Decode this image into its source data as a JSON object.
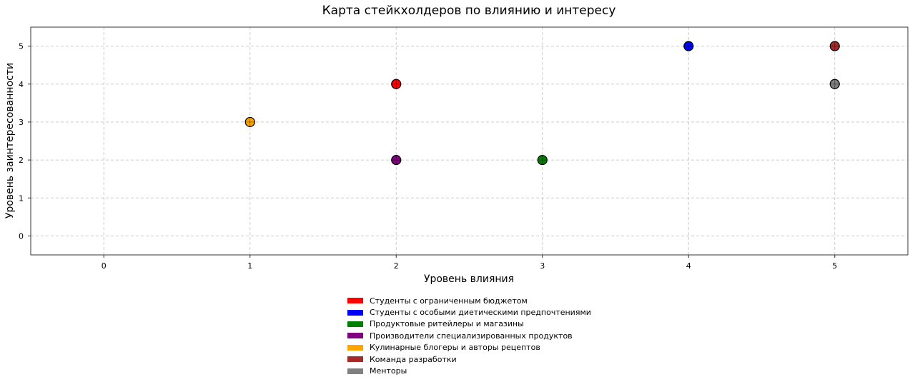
{
  "chart_data": {
    "type": "scatter",
    "title": "Карта стейкхолдеров по влиянию и интересу",
    "xlabel": "Уровень влияния",
    "ylabel": "Уровень заинтересованности",
    "xlim": [
      -0.5,
      5.5
    ],
    "ylim": [
      -0.5,
      5.5
    ],
    "xticks": [
      "0",
      "1",
      "2",
      "3",
      "4",
      "5"
    ],
    "yticks": [
      "0",
      "1",
      "2",
      "3",
      "4",
      "5"
    ],
    "grid": true,
    "legend_position": "bottom-center",
    "series": [
      {
        "name": "Студенты с ограниченным бюджетом",
        "color": "#ff0000",
        "x": 2,
        "y": 4
      },
      {
        "name": "Студенты с особыми диетическими предпочтениями",
        "color": "#0000ff",
        "x": 4,
        "y": 5
      },
      {
        "name": "Продуктовые ритейлеры и магазины",
        "color": "#008000",
        "x": 3,
        "y": 2
      },
      {
        "name": "Производители специализированных продуктов",
        "color": "#800080",
        "x": 2,
        "y": 2
      },
      {
        "name": "Кулинарные блогеры и авторы рецептов",
        "color": "#ffa500",
        "x": 1,
        "y": 3
      },
      {
        "name": "Команда разработки",
        "color": "#a52a2a",
        "x": 5,
        "y": 5
      },
      {
        "name": "Менторы",
        "color": "#808080",
        "x": 5,
        "y": 4
      }
    ]
  }
}
